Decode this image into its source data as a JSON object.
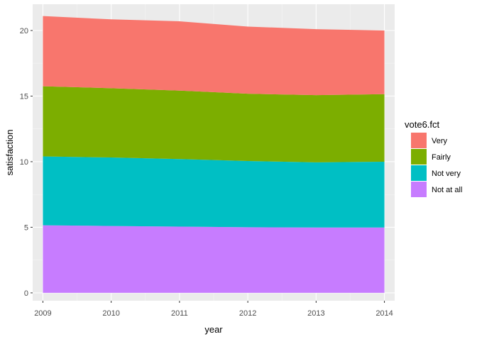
{
  "chart_data": {
    "type": "area",
    "stacked": true,
    "x": [
      2009,
      2010,
      2011,
      2012,
      2013,
      2014
    ],
    "series": [
      {
        "name": "Not at all",
        "values": [
          5.15,
          5.1,
          5.05,
          5.0,
          4.98,
          4.98
        ],
        "color": "#C77CFF"
      },
      {
        "name": "Not very",
        "values": [
          5.25,
          5.22,
          5.15,
          5.05,
          4.97,
          5.02
        ],
        "color": "#00BFC4"
      },
      {
        "name": "Fairly",
        "values": [
          5.35,
          5.28,
          5.22,
          5.13,
          5.12,
          5.15
        ],
        "color": "#7CAE00"
      },
      {
        "name": "Very",
        "values": [
          5.35,
          5.25,
          5.28,
          5.12,
          5.03,
          4.85
        ],
        "color": "#F8766D"
      }
    ],
    "xlabel": "year",
    "ylabel": "satisfaction",
    "xlim": [
      2008.85,
      2014.15
    ],
    "ylim": [
      -0.6,
      22.0
    ],
    "x_ticks": [
      2009,
      2010,
      2011,
      2012,
      2013,
      2014
    ],
    "y_ticks": [
      0,
      5,
      10,
      15,
      20
    ],
    "y_minor_ticks": [
      2.5,
      7.5,
      12.5,
      17.5
    ],
    "grid": true,
    "legend": {
      "title": "vote6.fct",
      "position": "right",
      "order": [
        "Very",
        "Fairly",
        "Not very",
        "Not at all"
      ]
    }
  }
}
